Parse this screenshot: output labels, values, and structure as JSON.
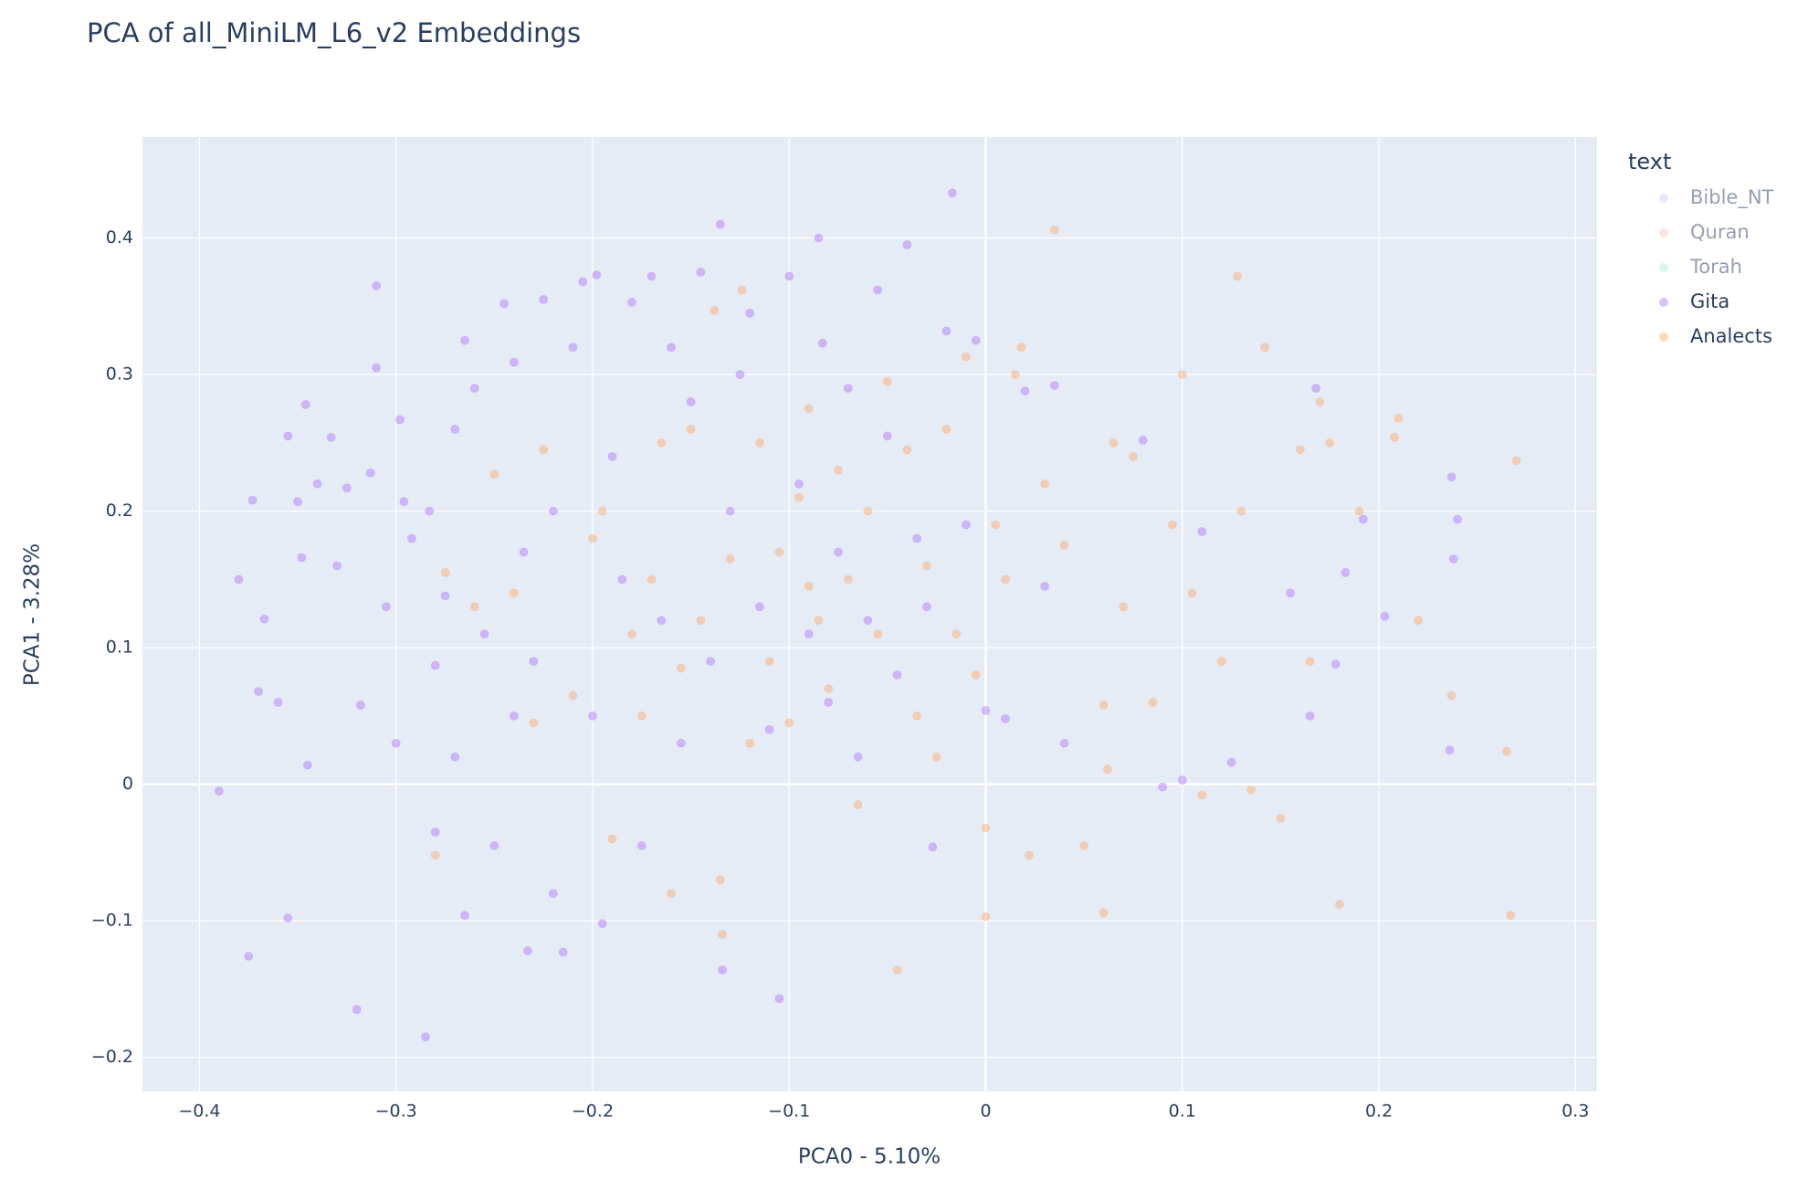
{
  "chart_data": {
    "type": "scatter",
    "title": "PCA of all_MiniLM_L6_v2 Embeddings",
    "x_label": "PCA0 - 5.10%",
    "y_label": "PCA1 - 3.28%",
    "legend_title": "text",
    "legend_position": "right",
    "grid": true,
    "marker_opacity": 0.4,
    "xlim": [
      -0.429,
      0.311
    ],
    "ylim": [
      -0.225,
      0.474
    ],
    "xticks": [
      {
        "value": -0.4,
        "label": "−0.4"
      },
      {
        "value": -0.3,
        "label": "−0.3"
      },
      {
        "value": -0.2,
        "label": "−0.2"
      },
      {
        "value": -0.1,
        "label": "−0.1"
      },
      0,
      0.1,
      0.2,
      0.3
    ],
    "yticks": [
      {
        "value": -0.2,
        "label": "−0.2"
      },
      {
        "value": -0.1,
        "label": "−0.1"
      },
      0,
      0.1,
      0.2,
      0.3,
      0.4
    ],
    "series": [
      {
        "name": "Bible_NT",
        "color": "#636efa",
        "visible": false,
        "x": [],
        "y": []
      },
      {
        "name": "Quran",
        "color": "#EF553B",
        "visible": false,
        "x": [],
        "y": []
      },
      {
        "name": "Torah",
        "color": "#00cc96",
        "visible": false,
        "x": [],
        "y": []
      },
      {
        "name": "Gita",
        "color": "#ab63fa",
        "visible": true,
        "x": [
          -0.39,
          -0.38,
          -0.375,
          -0.373,
          -0.37,
          -0.367,
          -0.36,
          -0.355,
          -0.355,
          -0.35,
          -0.348,
          -0.346,
          -0.345,
          -0.34,
          -0.333,
          -0.33,
          -0.325,
          -0.32,
          -0.318,
          -0.313,
          -0.31,
          -0.31,
          -0.305,
          -0.3,
          -0.298,
          -0.296,
          -0.292,
          -0.285,
          -0.283,
          -0.28,
          -0.275,
          -0.27,
          -0.265,
          -0.265,
          -0.26,
          -0.255,
          -0.25,
          -0.245,
          -0.24,
          -0.235,
          -0.233,
          -0.23,
          -0.225,
          -0.22,
          -0.215,
          -0.21,
          -0.205,
          -0.2,
          -0.198,
          -0.195,
          -0.19,
          -0.185,
          -0.18,
          -0.175,
          -0.17,
          -0.165,
          -0.16,
          -0.155,
          -0.15,
          -0.145,
          -0.14,
          -0.135,
          -0.134,
          -0.13,
          -0.125,
          -0.12,
          -0.115,
          -0.11,
          -0.105,
          -0.1,
          -0.095,
          -0.09,
          -0.085,
          -0.083,
          -0.08,
          -0.075,
          -0.07,
          -0.065,
          -0.06,
          -0.055,
          -0.05,
          -0.045,
          -0.04,
          -0.035,
          -0.03,
          -0.027,
          -0.02,
          -0.017,
          -0.01,
          -0.005,
          0,
          0.01,
          0.02,
          0.03,
          0.035,
          0.04,
          0.08,
          0.09,
          0.1,
          0.11,
          0.125,
          0.155,
          0.165,
          0.168,
          0.178,
          0.192,
          0.203,
          0.236,
          0.237,
          0.238,
          0.24,
          0.183,
          -0.27,
          -0.28,
          -0.24,
          -0.22
        ],
        "y": [
          -0.005,
          0.15,
          -0.126,
          0.208,
          0.068,
          0.121,
          0.06,
          -0.098,
          0.255,
          0.207,
          0.166,
          0.278,
          0.014,
          0.22,
          0.254,
          0.16,
          0.217,
          -0.165,
          0.058,
          0.228,
          0.365,
          0.305,
          0.13,
          0.03,
          0.267,
          0.207,
          0.18,
          -0.185,
          0.2,
          0.087,
          0.138,
          0.26,
          0.325,
          -0.096,
          0.29,
          0.11,
          -0.045,
          0.352,
          0.309,
          0.17,
          -0.122,
          0.09,
          0.355,
          0.2,
          -0.123,
          0.32,
          0.368,
          0.05,
          0.373,
          -0.102,
          0.24,
          0.15,
          0.353,
          -0.045,
          0.372,
          0.12,
          0.32,
          0.03,
          0.28,
          0.375,
          0.09,
          0.41,
          -0.136,
          0.2,
          0.3,
          0.345,
          0.13,
          0.04,
          -0.157,
          0.372,
          0.22,
          0.11,
          0.4,
          0.323,
          0.06,
          0.17,
          0.29,
          0.02,
          0.12,
          0.362,
          0.255,
          0.08,
          0.395,
          0.18,
          0.13,
          -0.046,
          0.332,
          0.433,
          0.19,
          0.325,
          0.054,
          0.048,
          0.288,
          0.145,
          0.292,
          0.03,
          0.252,
          -0.002,
          0.003,
          0.185,
          0.016,
          0.14,
          0.05,
          0.29,
          0.088,
          0.194,
          0.123,
          0.025,
          0.225,
          0.165,
          0.194,
          0.155,
          0.02,
          -0.035,
          0.05,
          -0.08
        ]
      },
      {
        "name": "Analects",
        "color": "#FFA15A",
        "visible": true,
        "x": [
          -0.28,
          -0.275,
          -0.26,
          -0.25,
          -0.24,
          -0.23,
          -0.225,
          -0.21,
          -0.2,
          -0.195,
          -0.19,
          -0.18,
          -0.175,
          -0.17,
          -0.165,
          -0.16,
          -0.155,
          -0.15,
          -0.145,
          -0.138,
          -0.135,
          -0.134,
          -0.13,
          -0.124,
          -0.12,
          -0.115,
          -0.11,
          -0.105,
          -0.1,
          -0.095,
          -0.09,
          -0.085,
          -0.08,
          -0.075,
          -0.07,
          -0.065,
          -0.06,
          -0.055,
          -0.05,
          -0.045,
          -0.04,
          -0.035,
          -0.03,
          -0.025,
          -0.02,
          -0.015,
          -0.01,
          -0.005,
          0,
          0,
          0.005,
          0.01,
          0.015,
          0.018,
          0.022,
          0.03,
          0.035,
          0.04,
          0.05,
          0.06,
          0.062,
          0.065,
          0.07,
          0.075,
          0.085,
          0.095,
          0.1,
          0.105,
          0.11,
          0.12,
          0.128,
          0.13,
          0.135,
          0.142,
          0.15,
          0.16,
          0.17,
          0.175,
          0.18,
          0.19,
          0.208,
          0.21,
          0.22,
          0.237,
          0.265,
          0.267,
          0.27,
          0.165,
          0.06,
          -0.09
        ],
        "y": [
          -0.052,
          0.155,
          0.13,
          0.227,
          0.14,
          0.045,
          0.245,
          0.065,
          0.18,
          0.2,
          -0.04,
          0.11,
          0.05,
          0.15,
          0.25,
          -0.08,
          0.085,
          0.26,
          0.12,
          0.347,
          -0.07,
          -0.11,
          0.165,
          0.362,
          0.03,
          0.25,
          0.09,
          0.17,
          0.045,
          0.21,
          0.275,
          0.12,
          0.07,
          0.23,
          0.15,
          -0.015,
          0.2,
          0.11,
          0.295,
          -0.136,
          0.245,
          0.05,
          0.16,
          0.02,
          0.26,
          0.11,
          0.313,
          0.08,
          -0.097,
          -0.032,
          0.19,
          0.15,
          0.3,
          0.32,
          -0.052,
          0.22,
          0.406,
          0.175,
          -0.045,
          -0.094,
          0.011,
          0.25,
          0.13,
          0.24,
          0.06,
          0.19,
          0.3,
          0.14,
          -0.008,
          0.09,
          0.372,
          0.2,
          -0.004,
          0.32,
          -0.025,
          0.245,
          0.28,
          0.25,
          -0.088,
          0.2,
          0.254,
          0.268,
          0.12,
          0.065,
          0.024,
          -0.096,
          0.237,
          0.09,
          0.058,
          0.145
        ]
      }
    ]
  }
}
